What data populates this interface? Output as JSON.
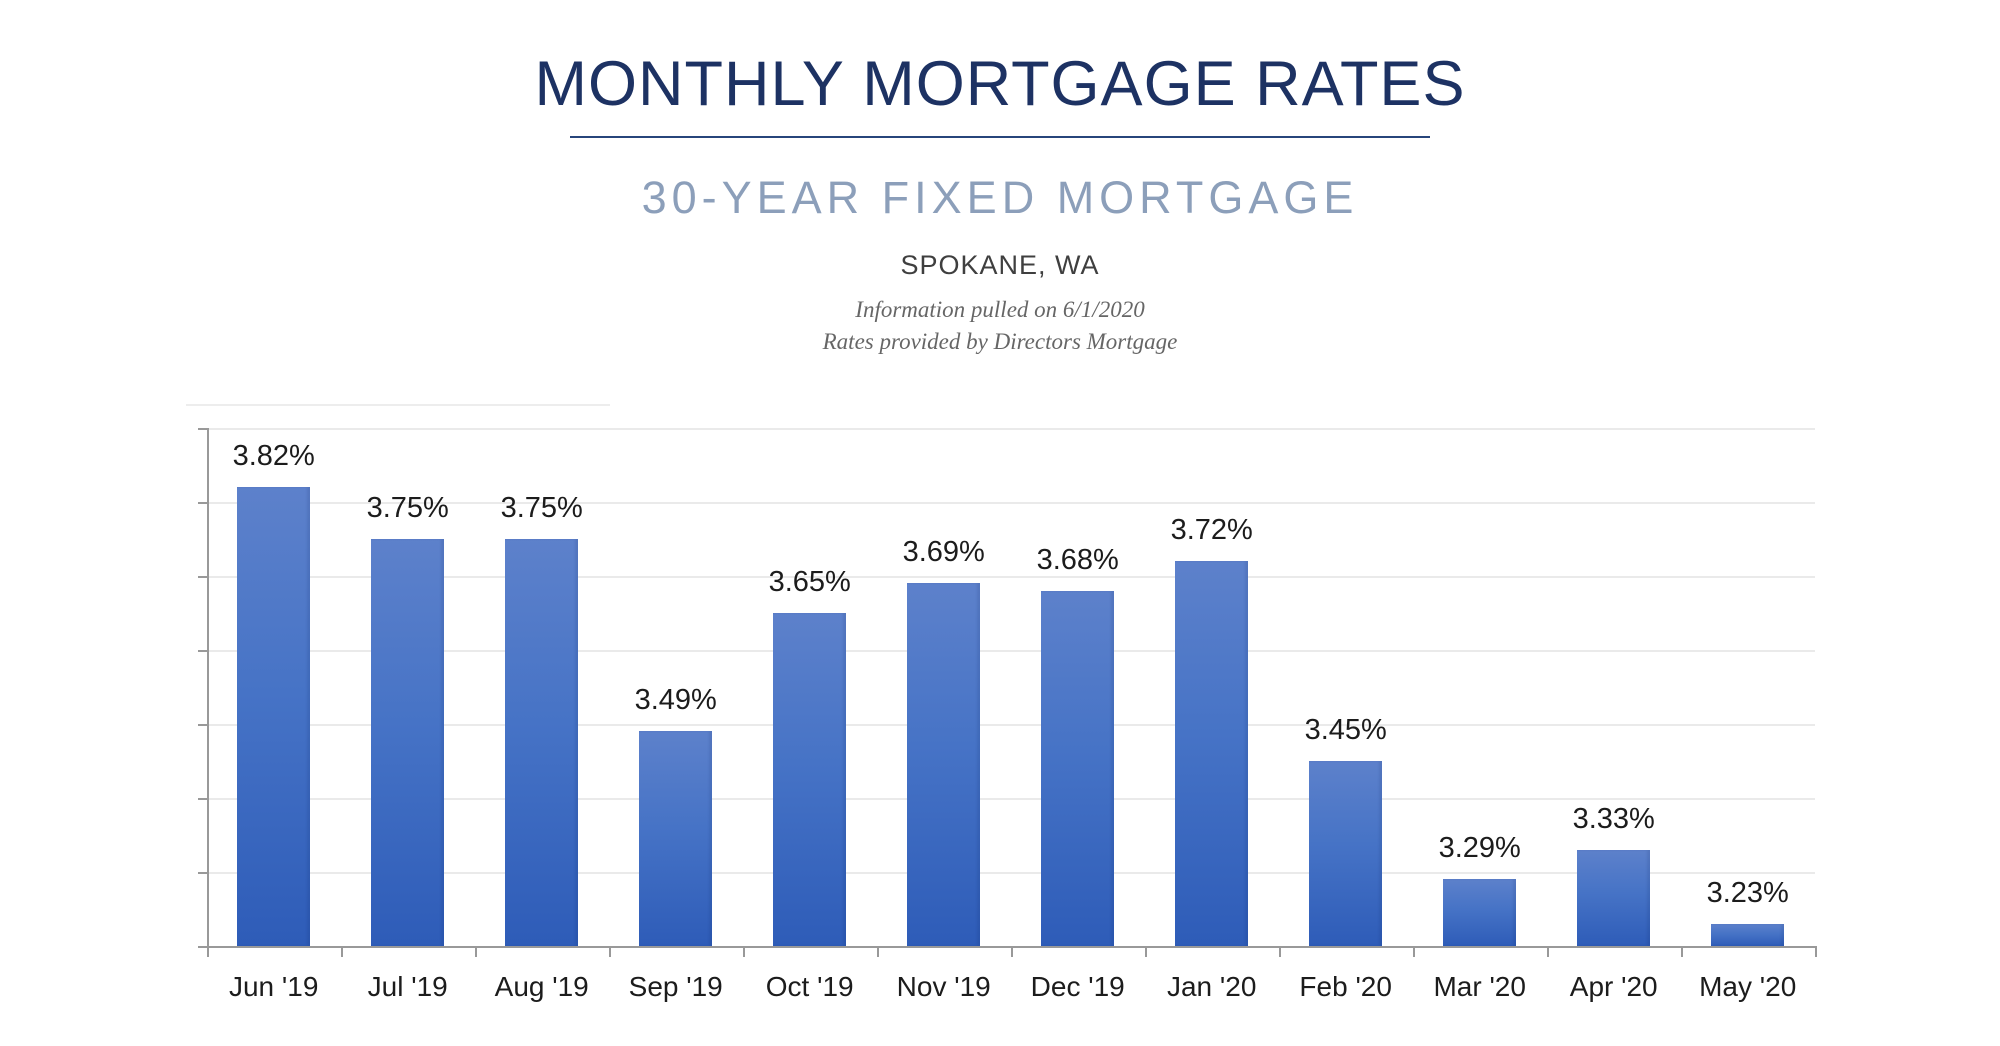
{
  "header": {
    "title": "MONTHLY MORTGAGE RATES",
    "subtitle": "30-YEAR FIXED MORTGAGE",
    "location": "SPOKANE, WA",
    "note_line1": "Information pulled on 6/1/2020",
    "note_line2": "Rates provided by Directors Mortgage"
  },
  "colors": {
    "title_navy": "#1d3263",
    "subtitle_blue_gray": "#8c9fba",
    "location_gray": "#3f3f3f",
    "note_gray": "#666666",
    "bar_gradient_top": "#5d81cb",
    "bar_gradient_mid": "#4673c6",
    "bar_gradient_bottom": "#2e5cb8",
    "axis_gray": "#999999",
    "gridline_gray": "#eaeaea",
    "data_label_dark": "#1c1c1c"
  },
  "chart_data": {
    "type": "bar",
    "title": "Monthly Mortgage Rates — 30-Year Fixed Mortgage, Spokane, WA",
    "categories": [
      "Jun '19",
      "Jul '19",
      "Aug '19",
      "Sep '19",
      "Oct '19",
      "Nov '19",
      "Dec '19",
      "Jan '20",
      "Feb '20",
      "Mar '20",
      "Apr '20",
      "May '20"
    ],
    "values": [
      3.82,
      3.75,
      3.75,
      3.49,
      3.65,
      3.69,
      3.68,
      3.72,
      3.45,
      3.29,
      3.33,
      3.23
    ],
    "data_labels": [
      "3.82%",
      "3.75%",
      "3.75%",
      "3.49%",
      "3.65%",
      "3.69%",
      "3.68%",
      "3.72%",
      "3.45%",
      "3.29%",
      "3.33%",
      "3.23%"
    ],
    "xlabel": "",
    "ylabel": "",
    "ylim": [
      3.2,
      3.9
    ],
    "y_major_unit": 0.1,
    "grid": true,
    "y_tick_labels_visible": false,
    "legend_position": "none"
  }
}
